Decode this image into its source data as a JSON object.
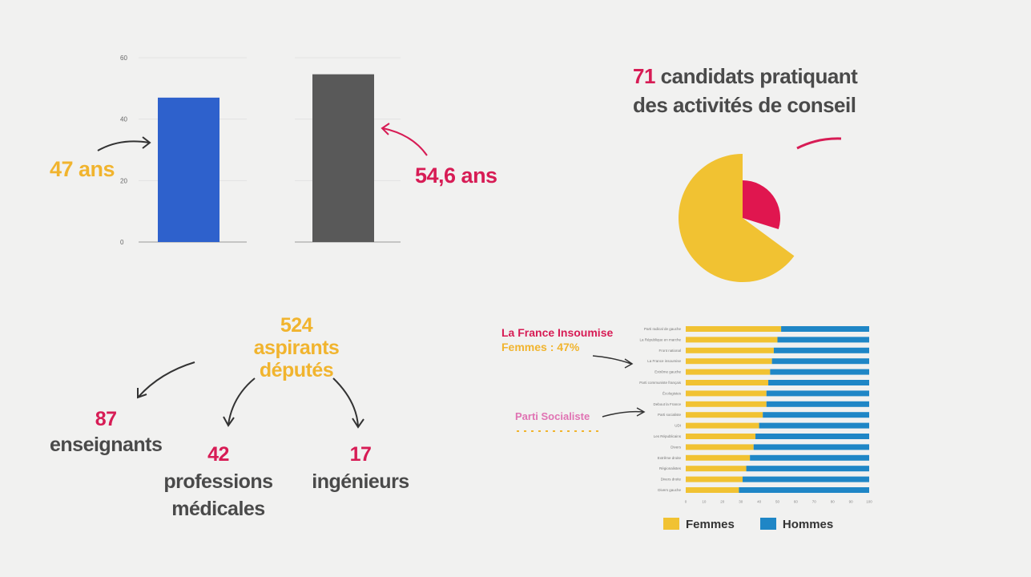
{
  "age_chart": {
    "ticks": [
      "0",
      "20",
      "40",
      "60"
    ],
    "ylim": [
      0,
      60
    ],
    "bars": [
      {
        "value": 47,
        "color": "#2e61cc",
        "label": "47 ans"
      },
      {
        "value": 54.6,
        "color": "#595959",
        "label": "54,6 ans"
      }
    ]
  },
  "conseil": {
    "count": "71",
    "line1_rest": " candidats pratiquant",
    "line2": "des activités de conseil",
    "share": 0.135
  },
  "aspirants": {
    "count": "524",
    "label": "aspirants députés",
    "items": [
      {
        "n": "87",
        "l1": "enseignants",
        "l2": ""
      },
      {
        "n": "42",
        "l1": "professions",
        "l2": "médicales"
      },
      {
        "n": "17",
        "l1": "ingénieurs",
        "l2": ""
      }
    ]
  },
  "chart_data": {
    "type": "bar",
    "orientation": "horizontal",
    "stacked": true,
    "categories": [
      "Parti radical de gauche",
      "La République en marche",
      "Front national",
      "La France insoumise",
      "Extrême gauche",
      "Parti communiste français",
      "Écologistes",
      "Debout la France",
      "Parti socialiste",
      "UDI",
      "Les Républicains",
      "Divers",
      "Extrême droite",
      "Régionalistes",
      "Divers droite",
      "Divers gauche"
    ],
    "series": [
      {
        "name": "Femmes",
        "color": "#f1c232",
        "values": [
          52,
          50,
          48,
          47,
          46,
          45,
          44,
          44,
          42,
          40,
          38,
          37,
          35,
          33,
          31,
          29
        ]
      },
      {
        "name": "Hommes",
        "color": "#1f86c6",
        "values": [
          48,
          50,
          52,
          53,
          54,
          55,
          56,
          56,
          58,
          60,
          62,
          63,
          65,
          67,
          69,
          71
        ]
      }
    ],
    "xticks": [
      "0",
      "10",
      "20",
      "30",
      "40",
      "50",
      "60",
      "70",
      "80",
      "90",
      "100"
    ],
    "xlim": [
      0,
      100
    ],
    "legend": "bottom",
    "annotations": [
      {
        "title": "La France Insoumise",
        "sub": "Femmes : 47%"
      },
      {
        "title": "Parti Socialiste"
      }
    ]
  }
}
